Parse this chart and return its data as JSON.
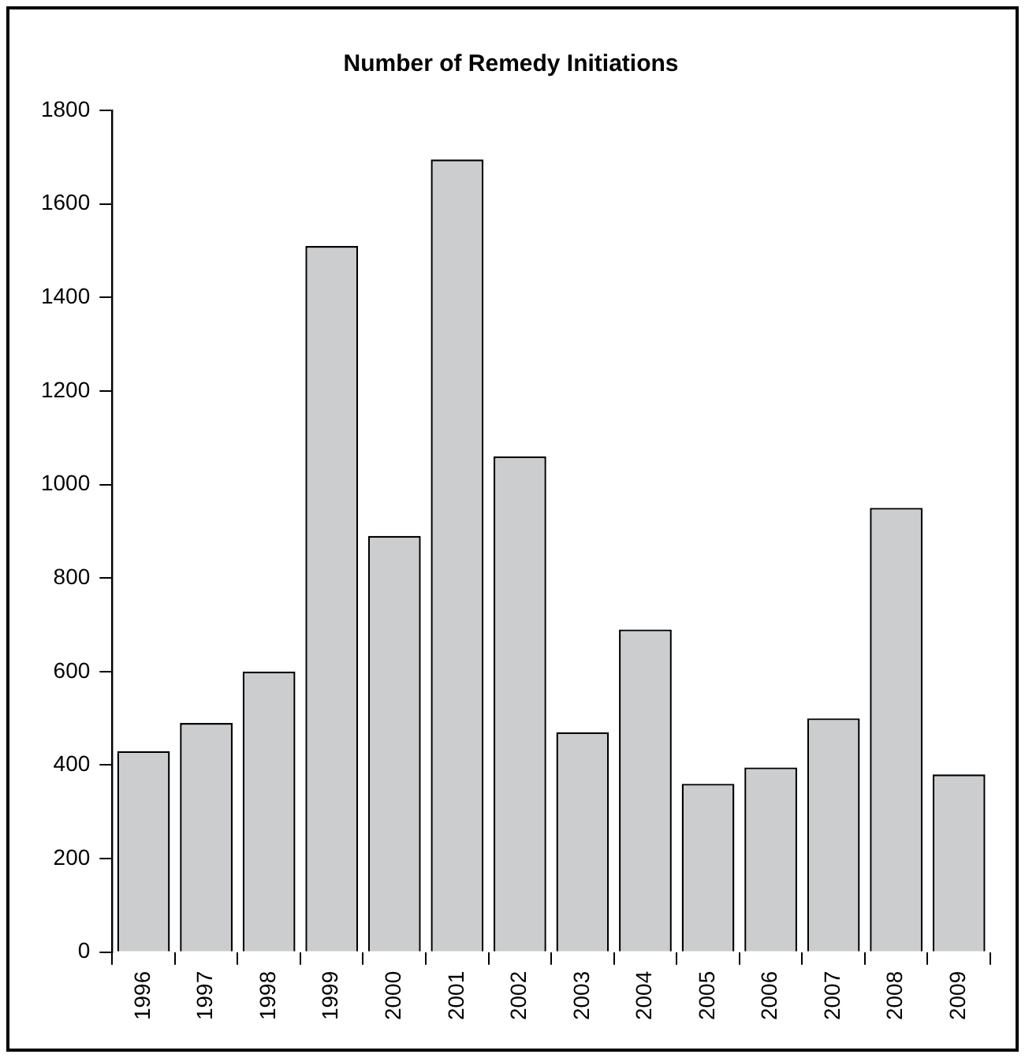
{
  "chart_data": {
    "type": "bar",
    "title": "Number of Remedy Initiations",
    "categories": [
      "1996",
      "1997",
      "1998",
      "1999",
      "2000",
      "2001",
      "2002",
      "2003",
      "2004",
      "2005",
      "2006",
      "2007",
      "2008",
      "2009"
    ],
    "values": [
      430,
      490,
      600,
      1510,
      890,
      1695,
      1060,
      470,
      690,
      360,
      395,
      500,
      950,
      380
    ],
    "color": "#cccdcf",
    "ylim": [
      0,
      1800
    ],
    "yticks": [
      0,
      200,
      400,
      600,
      800,
      1000,
      1200,
      1400,
      1600,
      1800
    ],
    "grid": false,
    "legend": false
  }
}
